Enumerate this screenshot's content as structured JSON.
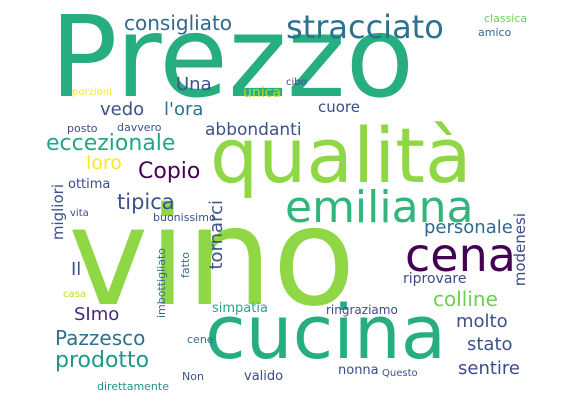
{
  "words": [
    {
      "text": "Prezzo",
      "color": "#26ad80"
    },
    {
      "text": "vino",
      "color": "#8fd744"
    },
    {
      "text": "qualità",
      "color": "#8fd744"
    },
    {
      "text": "cucina",
      "color": "#26ad80"
    },
    {
      "text": "emiliana",
      "color": "#31b57b"
    },
    {
      "text": "cena",
      "color": "#440154"
    },
    {
      "text": "stracciato",
      "color": "#2c728e"
    },
    {
      "text": "consigliato",
      "color": "#31688e"
    },
    {
      "text": "eccezionale",
      "color": "#21a685"
    },
    {
      "text": "Copio",
      "color": "#440154"
    },
    {
      "text": "tipica",
      "color": "#3b528b"
    },
    {
      "text": "personale",
      "color": "#31688e"
    },
    {
      "text": "prodotto",
      "color": "#1f988b"
    },
    {
      "text": "Pazzesco",
      "color": "#2c728e"
    },
    {
      "text": "colline",
      "color": "#6ece58"
    },
    {
      "text": "molto",
      "color": "#3b528b"
    },
    {
      "text": "stato",
      "color": "#3b528b"
    },
    {
      "text": "sentire",
      "color": "#3e4a89"
    },
    {
      "text": "Una",
      "color": "#3b528b"
    },
    {
      "text": "vedo",
      "color": "#3b528b"
    },
    {
      "text": "l'ora",
      "color": "#2c728e"
    },
    {
      "text": "abbondanti",
      "color": "#3b528b"
    },
    {
      "text": "cuore",
      "color": "#3e4a89"
    },
    {
      "text": "unica",
      "color": "#b5de2b"
    },
    {
      "text": "loro",
      "color": "#fde725"
    },
    {
      "text": "ottima",
      "color": "#3e4a89"
    },
    {
      "text": "Il",
      "color": "#3b528b"
    },
    {
      "text": "SImo",
      "color": "#482878"
    },
    {
      "text": "riprovare",
      "color": "#3e4a89"
    },
    {
      "text": "simpatia",
      "color": "#22a884"
    },
    {
      "text": "ringraziamo",
      "color": "#3e4a89"
    },
    {
      "text": "valido",
      "color": "#3e4a89"
    },
    {
      "text": "nonna",
      "color": "#3e4a89"
    },
    {
      "text": "Questo",
      "color": "#3b528b"
    },
    {
      "text": "Non",
      "color": "#3b528b"
    },
    {
      "text": "direttamente",
      "color": "#21918c"
    },
    {
      "text": "cene",
      "color": "#2c728e"
    },
    {
      "text": "casa",
      "color": "#bddf26"
    },
    {
      "text": "buonissimo",
      "color": "#3b528b"
    },
    {
      "text": "vita",
      "color": "#3e4a89"
    },
    {
      "text": "posto",
      "color": "#3e4a89"
    },
    {
      "text": "davvero",
      "color": "#3b528b"
    },
    {
      "text": "porzioni",
      "color": "#fde725"
    },
    {
      "text": "cibo",
      "color": "#3e4a89"
    },
    {
      "text": "classica",
      "color": "#6ece58"
    },
    {
      "text": "amico",
      "color": "#31688e"
    },
    {
      "text": "migliori",
      "color": "#3b528b"
    },
    {
      "text": "tornarci",
      "color": "#3b528b"
    },
    {
      "text": "modenesi",
      "color": "#3e4a89"
    },
    {
      "text": "imbottigliato",
      "color": "#2c728e"
    },
    {
      "text": "fatto",
      "color": "#2c728e"
    }
  ]
}
